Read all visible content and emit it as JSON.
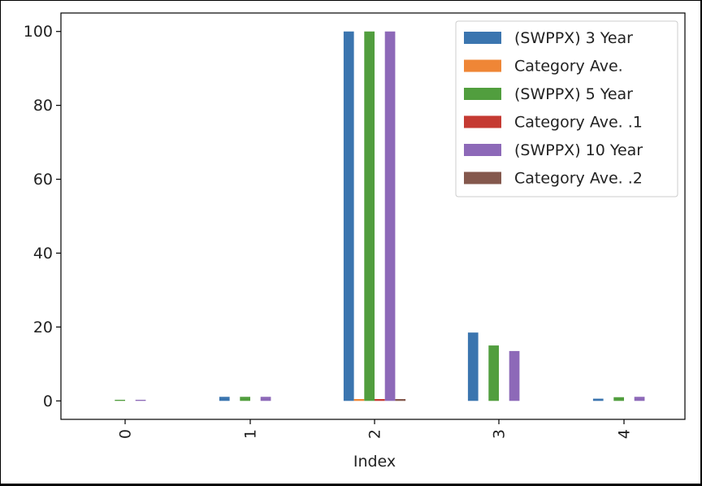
{
  "chart_data": {
    "type": "bar",
    "categories": [
      "0",
      "1",
      "2",
      "3",
      "4"
    ],
    "xlabel": "Index",
    "ylabel": "",
    "ylim": [
      -5,
      105
    ],
    "yticks": [
      0,
      20,
      40,
      60,
      80,
      100
    ],
    "grid": false,
    "legend_position": "top-right",
    "series": [
      {
        "name": "(SWPPX) 3 Year",
        "color": "#3b75af",
        "values": [
          0.0,
          1.1,
          100,
          18.5,
          0.6
        ]
      },
      {
        "name": "Category Ave.",
        "color": "#ef8636",
        "values": [
          0.0,
          0.0,
          0.5,
          0.0,
          0.0
        ]
      },
      {
        "name": "(SWPPX) 5 Year",
        "color": "#519e3e",
        "values": [
          0.3,
          1.1,
          100,
          15.0,
          1.0
        ]
      },
      {
        "name": "Category Ave. .1",
        "color": "#c53a32",
        "values": [
          0.0,
          0.0,
          0.5,
          0.0,
          0.0
        ]
      },
      {
        "name": "(SWPPX) 10 Year",
        "color": "#8d69b8",
        "values": [
          0.3,
          1.1,
          100,
          13.5,
          1.1
        ]
      },
      {
        "name": "Category Ave. .2",
        "color": "#84584d",
        "values": [
          0.0,
          0.0,
          0.5,
          0.0,
          0.0
        ]
      }
    ]
  }
}
